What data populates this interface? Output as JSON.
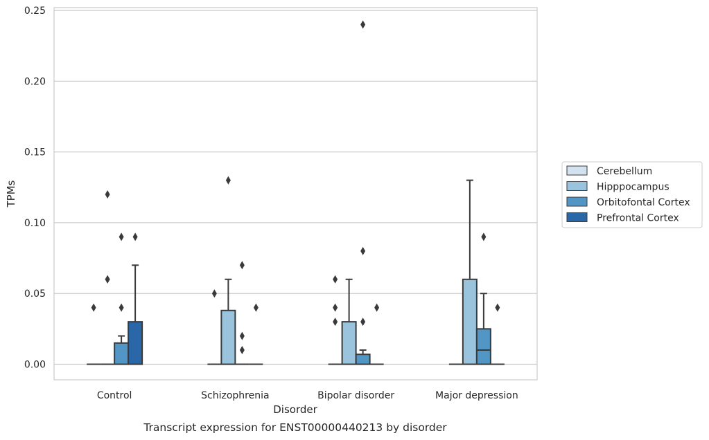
{
  "chart_data": {
    "type": "box",
    "categories": [
      "Control",
      "Schizophrenia",
      "Bipolar disorder",
      "Major depression"
    ],
    "xlabel": "Disorder",
    "ylabel": "TPMs",
    "caption": "Transcript expression for ENST00000440213 by disorder",
    "ylim": [
      -0.011,
      0.252
    ],
    "yticks": [
      "0.00",
      "0.05",
      "0.10",
      "0.15",
      "0.20",
      "0.25"
    ],
    "grid": "horizontal",
    "legend_position": "right",
    "series": [
      {
        "name": "Cerebellum",
        "color": "#d2e2f0",
        "boxes": [
          {
            "q1": 0,
            "median": 0,
            "q3": 0,
            "whisker_low": 0,
            "whisker_high": 0,
            "outliers": [
              0.04
            ]
          },
          {
            "q1": 0,
            "median": 0,
            "q3": 0,
            "whisker_low": 0,
            "whisker_high": 0,
            "outliers": [
              0.05
            ]
          },
          {
            "q1": 0,
            "median": 0,
            "q3": 0,
            "whisker_low": 0,
            "whisker_high": 0,
            "outliers": [
              0.03,
              0.04,
              0.06
            ]
          },
          {
            "q1": 0,
            "median": 0,
            "q3": 0,
            "whisker_low": 0,
            "whisker_high": 0,
            "outliers": []
          }
        ]
      },
      {
        "name": "Hipppocampus",
        "color": "#9ac4dd",
        "boxes": [
          {
            "q1": 0,
            "median": 0,
            "q3": 0,
            "whisker_low": 0,
            "whisker_high": 0,
            "outliers": [
              0.06,
              0.06,
              0.12
            ]
          },
          {
            "q1": 0,
            "median": 0,
            "q3": 0.038,
            "whisker_low": 0,
            "whisker_high": 0.06,
            "outliers": [
              0.13
            ]
          },
          {
            "q1": 0,
            "median": 0,
            "q3": 0.03,
            "whisker_low": 0,
            "whisker_high": 0.06,
            "outliers": []
          },
          {
            "q1": 0,
            "median": 0,
            "q3": 0.06,
            "whisker_low": 0,
            "whisker_high": 0.13,
            "outliers": []
          }
        ]
      },
      {
        "name": "Orbitofontal Cortex",
        "color": "#5196c4",
        "boxes": [
          {
            "q1": 0,
            "median": 0,
            "q3": 0.015,
            "whisker_low": 0,
            "whisker_high": 0.02,
            "outliers": [
              0.04,
              0.09
            ]
          },
          {
            "q1": 0,
            "median": 0,
            "q3": 0,
            "whisker_low": 0,
            "whisker_high": 0,
            "outliers": [
              0.01,
              0.02,
              0.07
            ]
          },
          {
            "q1": 0,
            "median": 0,
            "q3": 0.007,
            "whisker_low": 0,
            "whisker_high": 0.01,
            "outliers": [
              0.03,
              0.08,
              0.24
            ]
          },
          {
            "q1": 0,
            "median": 0.01,
            "q3": 0.025,
            "whisker_low": 0,
            "whisker_high": 0.05,
            "outliers": [
              0.09
            ]
          }
        ]
      },
      {
        "name": "Prefrontal Cortex",
        "color": "#2967a8",
        "boxes": [
          {
            "q1": 0,
            "median": 0,
            "q3": 0.03,
            "whisker_low": 0,
            "whisker_high": 0.07,
            "outliers": [
              0.09
            ]
          },
          {
            "q1": 0,
            "median": 0,
            "q3": 0,
            "whisker_low": 0,
            "whisker_high": 0,
            "outliers": [
              0.04
            ]
          },
          {
            "q1": 0,
            "median": 0,
            "q3": 0,
            "whisker_low": 0,
            "whisker_high": 0,
            "outliers": [
              0.04
            ]
          },
          {
            "q1": 0,
            "median": 0,
            "q3": 0,
            "whisker_low": 0,
            "whisker_high": 0,
            "outliers": [
              0.04
            ]
          }
        ]
      }
    ]
  }
}
